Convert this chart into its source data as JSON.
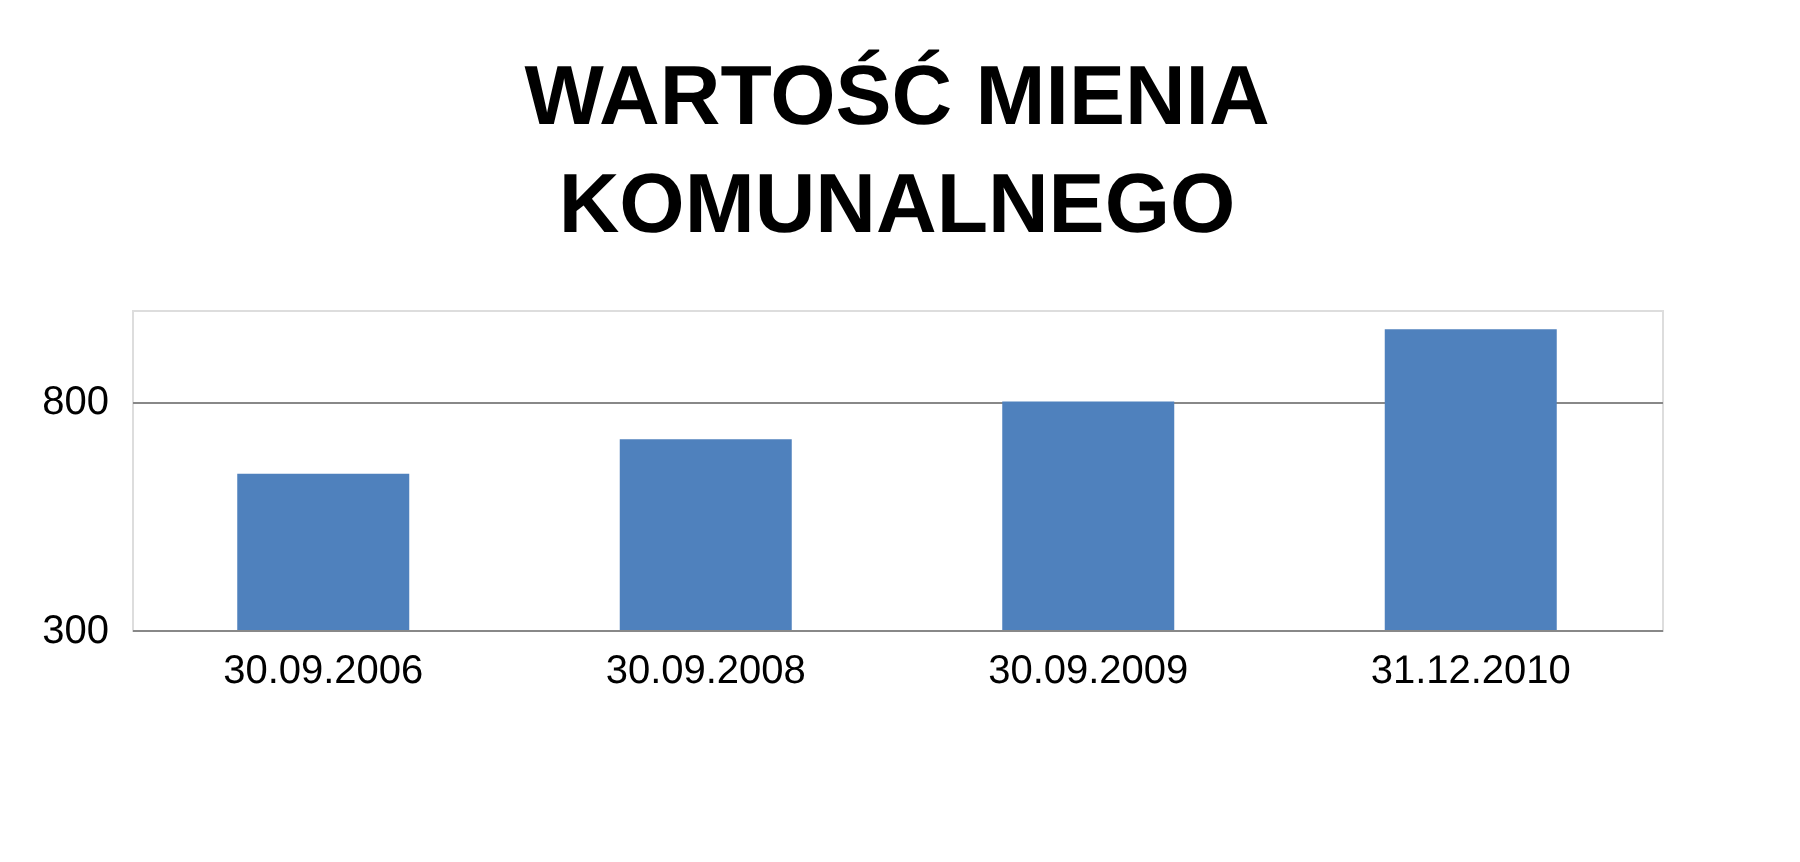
{
  "chart_data": {
    "type": "bar",
    "title": "WARTOŚĆ MIENIA\nKOMUNALNEGO",
    "categories": [
      "30.09.2006",
      "30.09.2008",
      "30.09.2009",
      "31.12.2010"
    ],
    "values": [
      642,
      717,
      800,
      958
    ],
    "color": "#4f81bd",
    "ylim": [
      300,
      1000
    ],
    "yticks": [
      300,
      800
    ],
    "grid": "y",
    "legend": false
  }
}
